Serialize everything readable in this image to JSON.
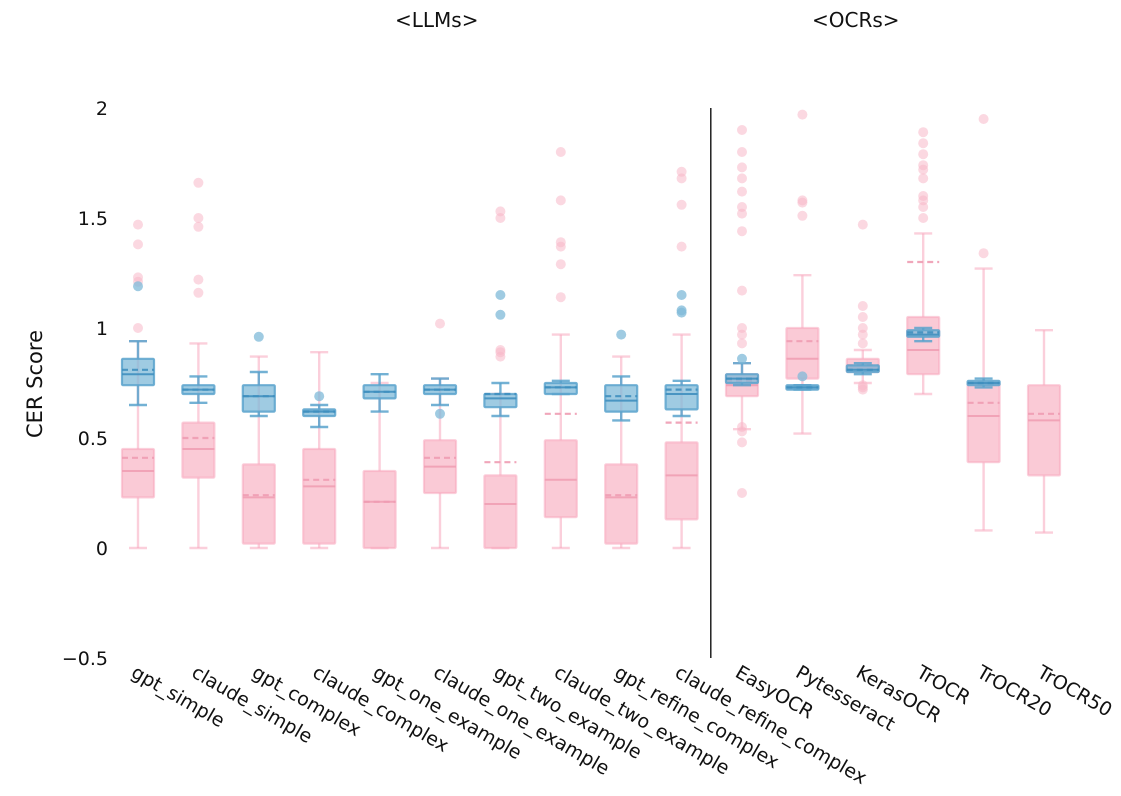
{
  "chart_data": {
    "type": "box",
    "annotations": [
      "<LLMs>",
      "<OCRs>"
    ],
    "ylabel": "CER Score",
    "xlabel": "",
    "ylim": [
      -0.5,
      2.0
    ],
    "yticks": [
      -0.5,
      0,
      0.5,
      1,
      1.5,
      2
    ],
    "ytick_labels": [
      "−0.5",
      "0",
      "0.5",
      "1",
      "1.5",
      "2"
    ],
    "grid": false,
    "legend": "none",
    "divider_after_category": "claude_refine_complex",
    "colors": {
      "pink": "#f8b8c8",
      "pink_edge": "#f7a8bd",
      "blue": "#7fb9d8",
      "blue_edge": "#5aa3cc"
    },
    "categories": [
      "gpt_simple",
      "claude_simple",
      "gpt_complex",
      "claude_complex",
      "gpt_one_example",
      "claude_one_example",
      "gpt_two_example",
      "claude_two_example",
      "gpt_refine_complex",
      "claude_refine_complex",
      "EasyOCR",
      "Pytesseract",
      "KerasOCR",
      "TrOCR",
      "TrOCR20",
      "TrOCR50"
    ],
    "series": [
      {
        "color": "pink",
        "boxes": [
          {
            "category": "gpt_simple",
            "whislo": 0.0,
            "q1": 0.23,
            "median": 0.35,
            "mean": 0.41,
            "q3": 0.45,
            "whishi": 0.94,
            "fliers": [
              1.0,
              1.21,
              1.23,
              1.38,
              1.47
            ]
          },
          {
            "category": "claude_simple",
            "whislo": 0.0,
            "q1": 0.32,
            "median": 0.45,
            "mean": 0.5,
            "q3": 0.57,
            "whishi": 0.93,
            "fliers": [
              1.16,
              1.22,
              1.46,
              1.5,
              1.66
            ]
          },
          {
            "category": "gpt_complex",
            "whislo": 0.0,
            "q1": 0.02,
            "median": 0.23,
            "mean": 0.24,
            "q3": 0.38,
            "whishi": 0.87,
            "fliers": []
          },
          {
            "category": "claude_complex",
            "whislo": 0.0,
            "q1": 0.02,
            "median": 0.28,
            "mean": 0.31,
            "q3": 0.45,
            "whishi": 0.89,
            "fliers": []
          },
          {
            "category": "gpt_one_example",
            "whislo": 0.0,
            "q1": 0.0,
            "median": 0.21,
            "mean": 0.21,
            "q3": 0.35,
            "whishi": 0.75,
            "fliers": []
          },
          {
            "category": "claude_one_example",
            "whislo": 0.0,
            "q1": 0.25,
            "median": 0.37,
            "mean": 0.41,
            "q3": 0.49,
            "whishi": 0.77,
            "fliers": [
              1.02
            ]
          },
          {
            "category": "gpt_two_example",
            "whislo": 0.0,
            "q1": 0.0,
            "median": 0.2,
            "mean": 0.39,
            "q3": 0.33,
            "whishi": 0.7,
            "fliers": [
              0.87,
              0.89,
              0.9,
              1.5,
              1.53
            ]
          },
          {
            "category": "claude_two_example",
            "whislo": 0.0,
            "q1": 0.14,
            "median": 0.31,
            "mean": 0.61,
            "q3": 0.49,
            "whishi": 0.97,
            "fliers": [
              1.14,
              1.29,
              1.37,
              1.39,
              1.58,
              1.8
            ]
          },
          {
            "category": "gpt_refine_complex",
            "whislo": 0.0,
            "q1": 0.02,
            "median": 0.23,
            "mean": 0.24,
            "q3": 0.38,
            "whishi": 0.87,
            "fliers": []
          },
          {
            "category": "claude_refine_complex",
            "whislo": 0.0,
            "q1": 0.13,
            "median": 0.33,
            "mean": 0.57,
            "q3": 0.48,
            "whishi": 0.97,
            "fliers": [
              1.37,
              1.56,
              1.68,
              1.71
            ]
          },
          {
            "category": "EasyOCR",
            "whislo": 0.54,
            "q1": 0.69,
            "median": 0.74,
            "mean": 0.76,
            "q3": 0.79,
            "whishi": 0.84,
            "fliers": [
              0.25,
              0.48,
              0.53,
              0.55,
              0.93,
              0.97,
              1.0,
              1.17,
              1.44,
              1.52,
              1.55,
              1.62,
              1.68,
              1.73,
              1.8,
              1.9
            ]
          },
          {
            "category": "Pytesseract",
            "whislo": 0.52,
            "q1": 0.77,
            "median": 0.86,
            "mean": 0.94,
            "q3": 1.0,
            "whishi": 1.24,
            "fliers": [
              1.51,
              1.57,
              1.58,
              1.97
            ]
          },
          {
            "category": "KerasOCR",
            "whislo": 0.75,
            "q1": 0.8,
            "median": 0.82,
            "mean": 0.83,
            "q3": 0.86,
            "whishi": 0.9,
            "fliers": [
              0.72,
              0.73,
              0.74,
              0.93,
              0.97,
              1.0,
              1.05,
              1.1,
              1.47
            ]
          },
          {
            "category": "TrOCR",
            "whislo": 0.7,
            "q1": 0.79,
            "median": 0.9,
            "mean": 1.3,
            "q3": 1.05,
            "whishi": 1.43,
            "fliers": [
              1.5,
              1.55,
              1.58,
              1.6,
              1.68,
              1.72,
              1.74,
              1.79,
              1.84,
              1.89
            ]
          },
          {
            "category": "TrOCR20",
            "whislo": 0.08,
            "q1": 0.39,
            "median": 0.6,
            "mean": 0.66,
            "q3": 0.75,
            "whishi": 1.27,
            "fliers": [
              1.34,
              1.95
            ]
          },
          {
            "category": "TrOCR50",
            "whislo": 0.07,
            "q1": 0.33,
            "median": 0.58,
            "mean": 0.61,
            "q3": 0.74,
            "whishi": 0.99,
            "fliers": []
          }
        ]
      },
      {
        "color": "blue",
        "boxes": [
          {
            "category": "gpt_simple",
            "whislo": 0.65,
            "q1": 0.74,
            "median": 0.79,
            "mean": 0.81,
            "q3": 0.86,
            "whishi": 0.94,
            "fliers": [
              1.19
            ]
          },
          {
            "category": "claude_simple",
            "whislo": 0.66,
            "q1": 0.7,
            "median": 0.72,
            "mean": 0.72,
            "q3": 0.74,
            "whishi": 0.78,
            "fliers": []
          },
          {
            "category": "gpt_complex",
            "whislo": 0.6,
            "q1": 0.62,
            "median": 0.69,
            "mean": 0.69,
            "q3": 0.74,
            "whishi": 0.8,
            "fliers": [
              0.96
            ]
          },
          {
            "category": "claude_complex",
            "whislo": 0.55,
            "q1": 0.6,
            "median": 0.62,
            "mean": 0.62,
            "q3": 0.63,
            "whishi": 0.65,
            "fliers": [
              0.69
            ]
          },
          {
            "category": "gpt_one_example",
            "whislo": 0.62,
            "q1": 0.68,
            "median": 0.71,
            "mean": 0.71,
            "q3": 0.74,
            "whishi": 0.79,
            "fliers": []
          },
          {
            "category": "claude_one_example",
            "whislo": 0.65,
            "q1": 0.7,
            "median": 0.72,
            "mean": 0.72,
            "q3": 0.74,
            "whishi": 0.77,
            "fliers": [
              0.61
            ]
          },
          {
            "category": "gpt_two_example",
            "whislo": 0.6,
            "q1": 0.64,
            "median": 0.68,
            "mean": 0.7,
            "q3": 0.7,
            "whishi": 0.75,
            "fliers": [
              1.06,
              1.15
            ]
          },
          {
            "category": "claude_two_example",
            "whislo": 0.7,
            "q1": 0.7,
            "median": 0.73,
            "mean": 0.73,
            "q3": 0.75,
            "whishi": 0.76,
            "fliers": []
          },
          {
            "category": "gpt_refine_complex",
            "whislo": 0.58,
            "q1": 0.62,
            "median": 0.67,
            "mean": 0.69,
            "q3": 0.74,
            "whishi": 0.78,
            "fliers": [
              0.97
            ]
          },
          {
            "category": "claude_refine_complex",
            "whislo": 0.6,
            "q1": 0.63,
            "median": 0.7,
            "mean": 0.72,
            "q3": 0.74,
            "whishi": 0.76,
            "fliers": [
              1.07,
              1.08,
              1.15
            ]
          },
          {
            "category": "EasyOCR",
            "whislo": 0.74,
            "q1": 0.75,
            "median": 0.77,
            "mean": 0.77,
            "q3": 0.79,
            "whishi": 0.84,
            "fliers": [
              0.86
            ]
          },
          {
            "category": "Pytesseract",
            "whislo": 0.72,
            "q1": 0.72,
            "median": 0.73,
            "mean": 0.73,
            "q3": 0.74,
            "whishi": 0.74,
            "fliers": [
              0.78
            ]
          },
          {
            "category": "KerasOCR",
            "whislo": 0.79,
            "q1": 0.8,
            "median": 0.81,
            "mean": 0.81,
            "q3": 0.83,
            "whishi": 0.84,
            "fliers": []
          },
          {
            "category": "TrOCR",
            "whislo": 0.94,
            "q1": 0.96,
            "median": 0.97,
            "mean": 0.98,
            "q3": 0.99,
            "whishi": 1.0,
            "fliers": []
          },
          {
            "category": "TrOCR20",
            "whislo": 0.73,
            "q1": 0.74,
            "median": 0.75,
            "mean": 0.75,
            "q3": 0.76,
            "whishi": 0.77,
            "fliers": []
          }
        ]
      }
    ]
  }
}
